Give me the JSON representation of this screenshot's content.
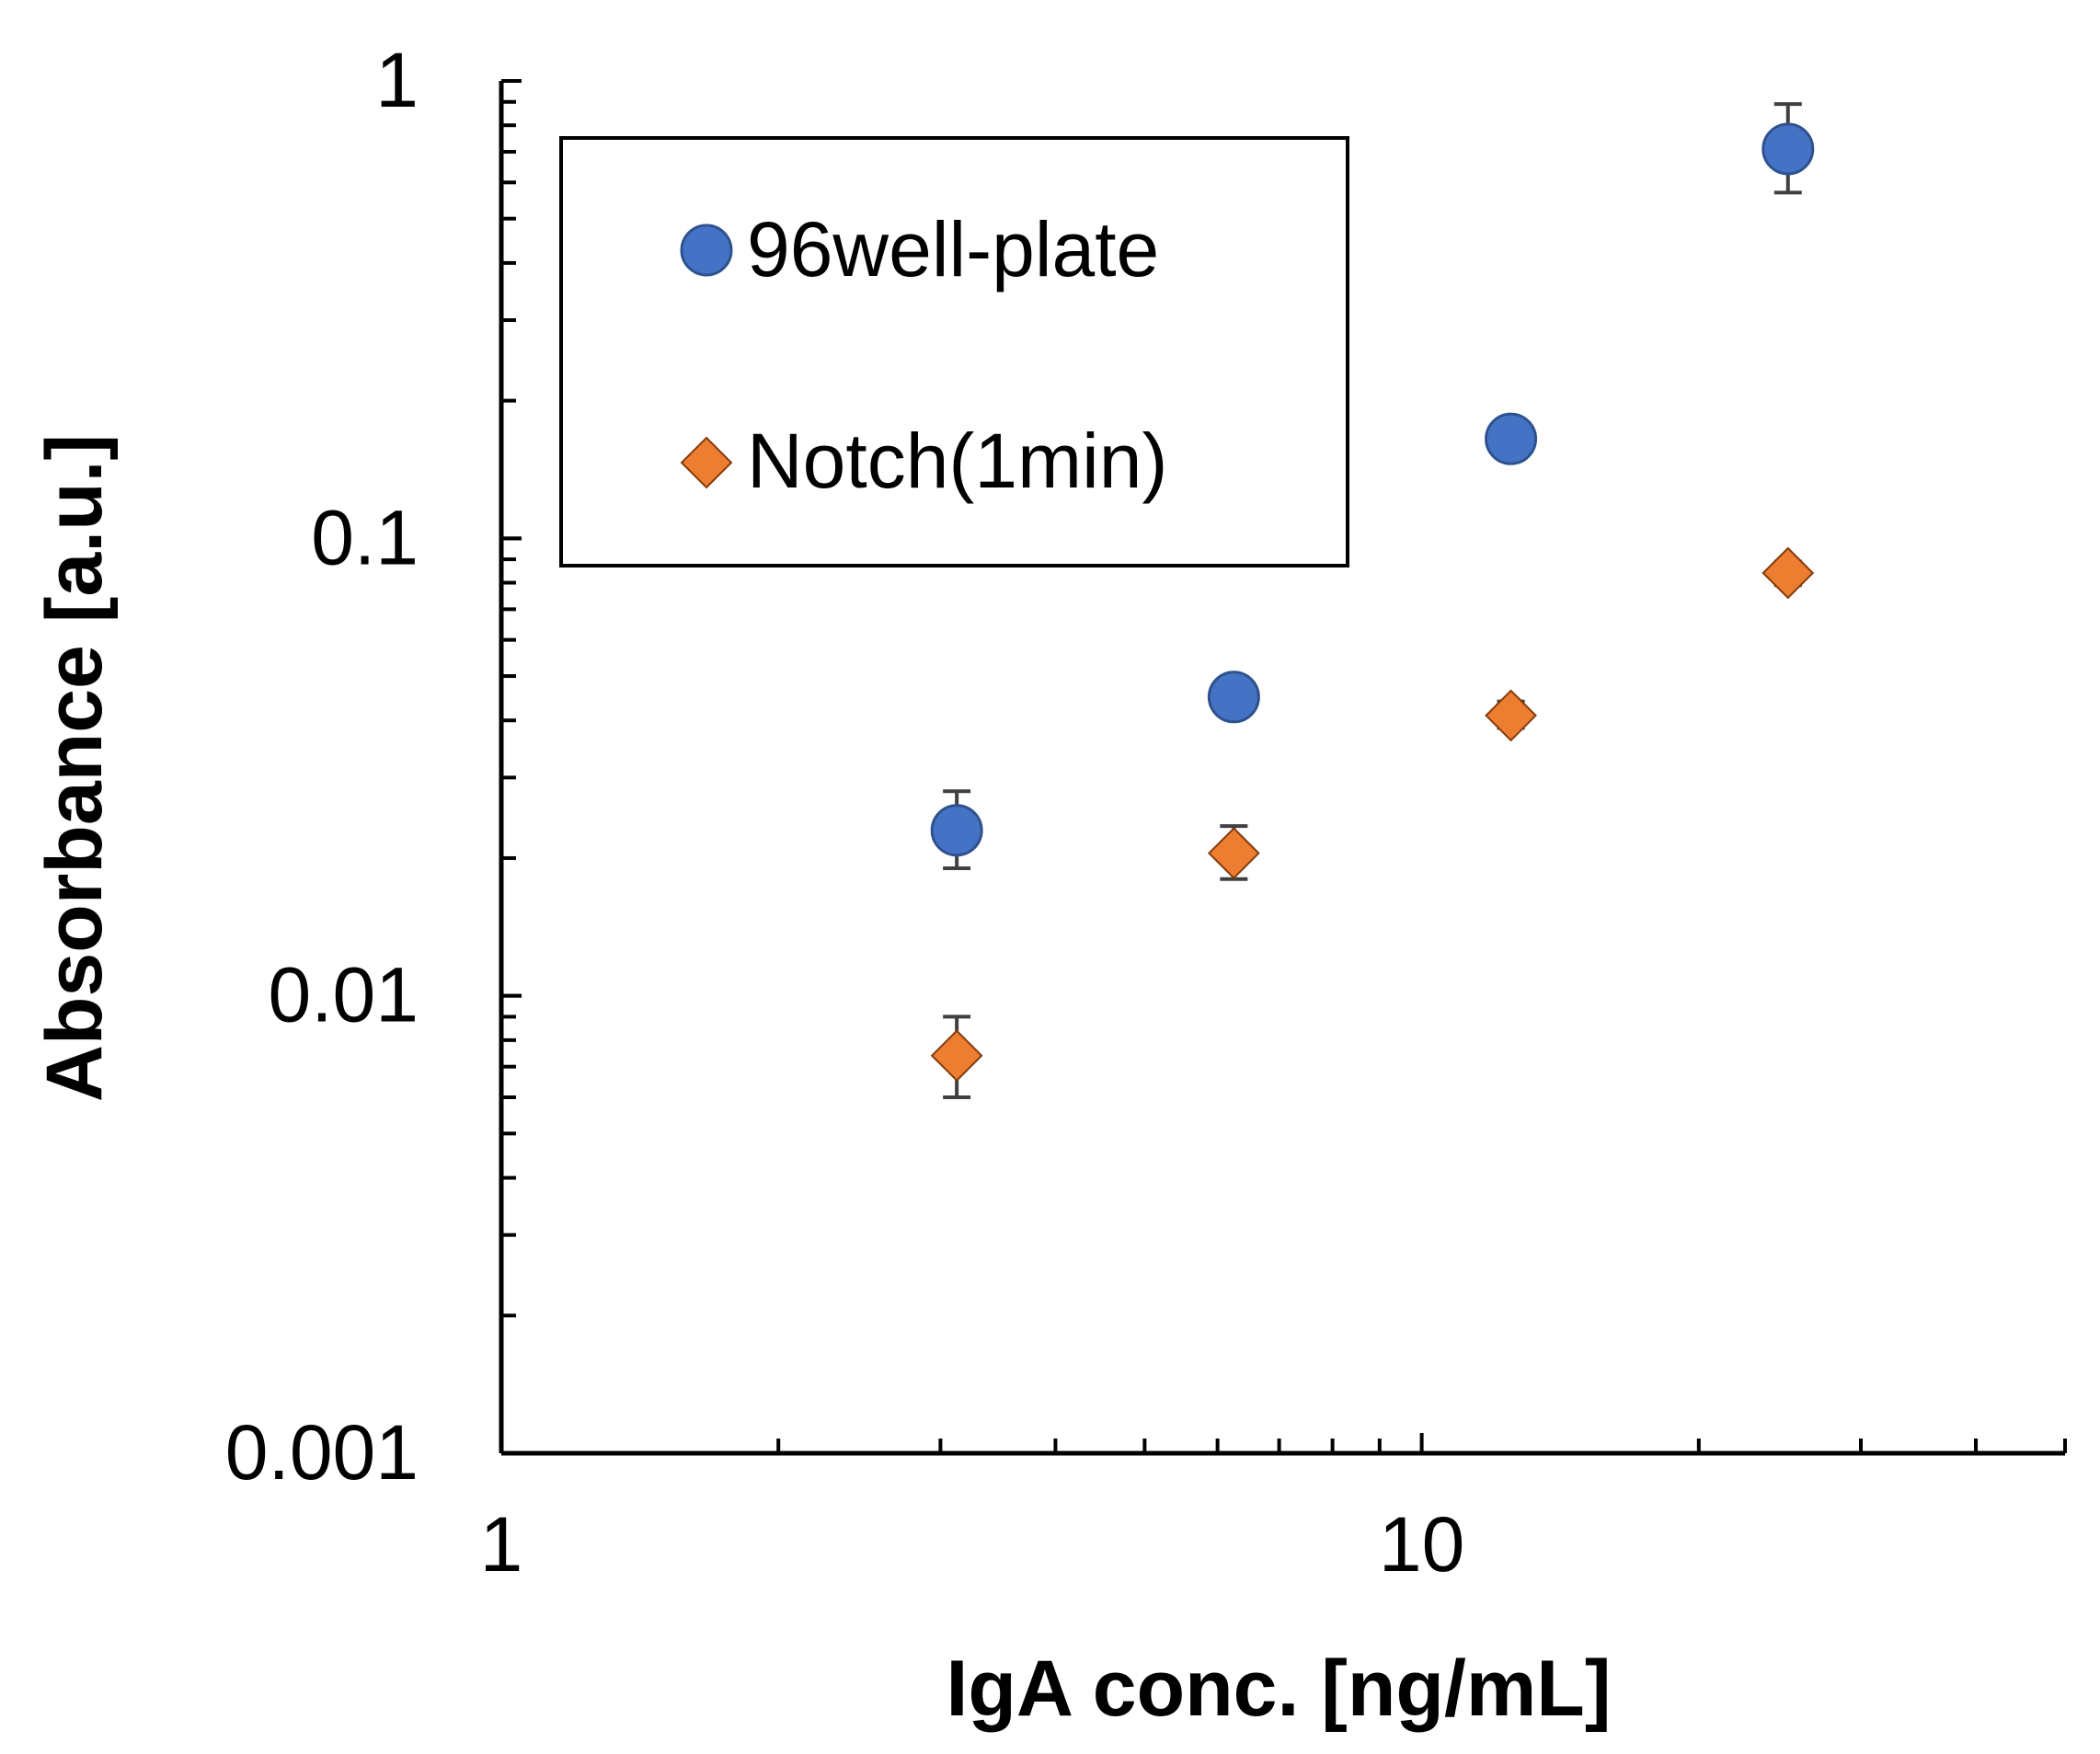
{
  "chart_data": {
    "type": "scatter",
    "title": "",
    "xlabel": "IgA conc. [ng/mL]",
    "ylabel": "Absorbance [a.u.]",
    "xscale": "log",
    "yscale": "log",
    "xlim": [
      1,
      50
    ],
    "ylim": [
      0.001,
      1
    ],
    "x_tick_labels": [
      {
        "value": 1,
        "label": "1"
      },
      {
        "value": 10,
        "label": "10"
      }
    ],
    "y_tick_labels": [
      {
        "value": 1,
        "label": "1"
      },
      {
        "value": 0.1,
        "label": "0.1"
      },
      {
        "value": 0.01,
        "label": "0.01"
      },
      {
        "value": 0.001,
        "label": "0.001"
      }
    ],
    "legend_position": "top-left",
    "series": [
      {
        "name": "96well-plate",
        "marker": "circle",
        "color": "#4472C4",
        "points": [
          {
            "x": 3.125,
            "y": 0.023,
            "err_low": 0.019,
            "err_high": 0.028
          },
          {
            "x": 6.25,
            "y": 0.045,
            "err_low": 0.043,
            "err_high": 0.047
          },
          {
            "x": 12.5,
            "y": 0.165,
            "err_low": 0.16,
            "err_high": 0.17
          },
          {
            "x": 25,
            "y": 0.71,
            "err_low": 0.57,
            "err_high": 0.89
          }
        ]
      },
      {
        "name": "Notch(1min)",
        "marker": "diamond",
        "color": "#ED7D31",
        "points": [
          {
            "x": 3.125,
            "y": 0.0074,
            "err_low": 0.006,
            "err_high": 0.009
          },
          {
            "x": 6.25,
            "y": 0.0205,
            "err_low": 0.018,
            "err_high": 0.0235
          },
          {
            "x": 12.5,
            "y": 0.041,
            "err_low": 0.0385,
            "err_high": 0.044
          },
          {
            "x": 25,
            "y": 0.084,
            "err_low": 0.079,
            "err_high": 0.089
          }
        ]
      }
    ]
  }
}
